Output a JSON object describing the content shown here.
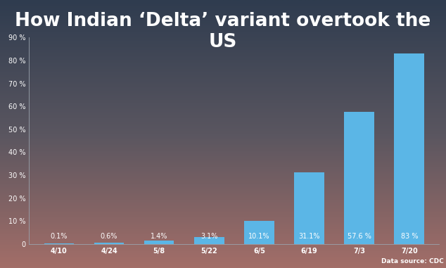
{
  "chart_data": {
    "type": "bar",
    "title": "How Indian ‘Delta’ variant overtook the US",
    "categories": [
      "4/10",
      "4/24",
      "5/8",
      "5/22",
      "6/5",
      "6/19",
      "7/3",
      "7/20"
    ],
    "values": [
      0.1,
      0.6,
      1.4,
      3.1,
      10.1,
      31.1,
      57.6,
      83
    ],
    "value_labels": [
      "0.1%",
      "0.6%",
      "1.4%",
      "3.1%",
      "10.1%",
      "31.1%",
      "57.6 %",
      "83 %"
    ],
    "data_labels": true,
    "color": "#5bb6e6",
    "ylim": [
      0,
      90
    ],
    "yticks": [
      0,
      {
        "value": 10,
        "label": "10 %"
      },
      {
        "value": 20,
        "label": "20 %"
      },
      {
        "value": 30,
        "label": "30 %"
      },
      {
        "value": 40,
        "label": "40 %"
      },
      {
        "value": 50,
        "label": "50 %"
      },
      {
        "value": 60,
        "label": "60 %"
      },
      {
        "value": 70,
        "label": "70 %"
      },
      {
        "value": 80,
        "label": "80 %"
      },
      {
        "value": 90,
        "label": "90 %"
      }
    ],
    "grid": false,
    "source": "Data source: CDC"
  }
}
